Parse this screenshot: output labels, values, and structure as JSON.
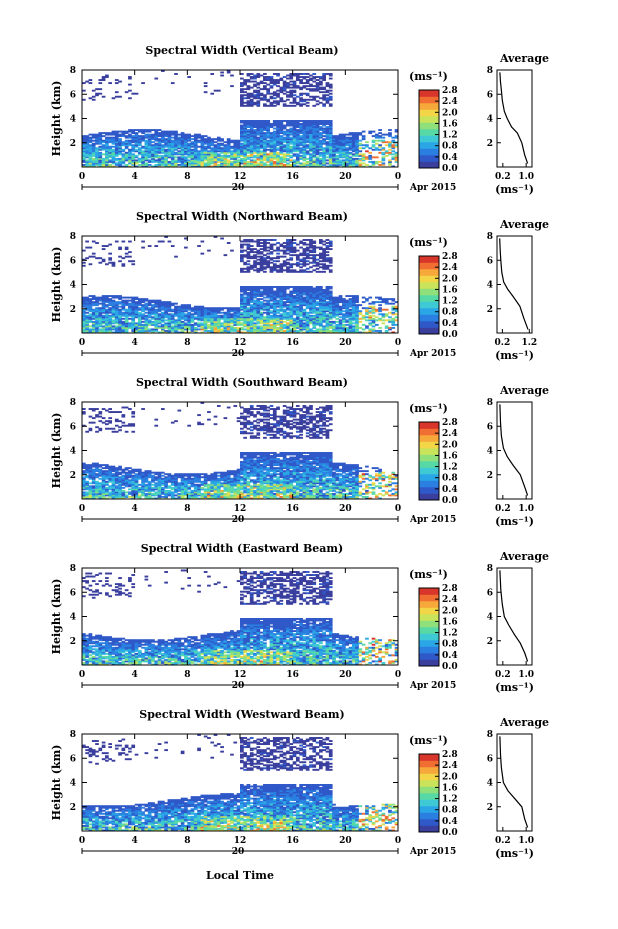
{
  "figure": {
    "xlabel": "Local Time",
    "day_label": "20",
    "month_label": "Apr 2015",
    "unit_label": "(ms⁻¹)",
    "avg_title": "Average"
  },
  "colorscale": {
    "colors": [
      "#3a3f9e",
      "#2f58c8",
      "#2a7fe0",
      "#2aa6e6",
      "#3fc9d4",
      "#57d9a6",
      "#8fe07a",
      "#c9e35a",
      "#f2d648",
      "#f7a83a",
      "#f16e32",
      "#d9362b"
    ],
    "ticks": [
      "2.8",
      "2.4",
      "2.0",
      "1.6",
      "1.2",
      "0.8",
      "0.4",
      "0.0"
    ]
  },
  "chart_data": [
    {
      "type": "heatmap",
      "title": "Spectral Width (Vertical Beam)",
      "xlabel": "Local Time",
      "ylabel": "Height (km)",
      "xlim": [
        0,
        24
      ],
      "ylim": [
        0,
        8
      ],
      "xticks": [
        "0",
        "4",
        "8",
        "12",
        "16",
        "20",
        "0"
      ],
      "yticks": [
        "2",
        "4",
        "6",
        "8"
      ],
      "colorbar": {
        "label": "(ms⁻¹)",
        "range": [
          0.0,
          2.8
        ],
        "ticks": [
          "2.8",
          "2.4",
          "2.0",
          "1.6",
          "1.2",
          "0.8",
          "0.4",
          "0.0"
        ]
      },
      "average_profile": {
        "title": "Average",
        "xlabel": "(ms⁻¹)",
        "xlim": [
          0,
          1.2
        ],
        "xticks": [
          "0.2",
          "1.0"
        ],
        "ylim": [
          0,
          8
        ],
        "yticks": [
          "2",
          "4",
          "6",
          "8"
        ],
        "x": [
          1.05,
          0.95,
          0.85,
          0.7,
          0.5,
          0.35,
          0.25,
          0.18,
          0.15,
          0.12,
          0.1
        ],
        "y": [
          0.3,
          1.0,
          2.0,
          2.8,
          3.3,
          4.0,
          4.6,
          5.5,
          6.3,
          7.0,
          7.8
        ]
      }
    },
    {
      "type": "heatmap",
      "title": "Spectral Width (Northward Beam)",
      "xlabel": "Local Time",
      "ylabel": "Height (km)",
      "xlim": [
        0,
        24
      ],
      "ylim": [
        0,
        8
      ],
      "xticks": [
        "0",
        "4",
        "8",
        "12",
        "16",
        "20",
        "0"
      ],
      "yticks": [
        "2",
        "4",
        "6",
        "8"
      ],
      "colorbar": {
        "label": "(ms⁻¹)",
        "range": [
          0.0,
          2.8
        ],
        "ticks": [
          "2.8",
          "2.4",
          "2.0",
          "1.6",
          "1.2",
          "0.8",
          "0.4",
          "0.0"
        ]
      },
      "average_profile": {
        "title": "Average",
        "xlabel": "(ms⁻¹)",
        "xlim": [
          0,
          1.3
        ],
        "xticks": [
          "0.2",
          "1.2"
        ],
        "ylim": [
          0,
          8
        ],
        "yticks": [
          "2",
          "4",
          "6",
          "8"
        ],
        "x": [
          1.15,
          1.0,
          0.85,
          0.6,
          0.4,
          0.25,
          0.18,
          0.14,
          0.12,
          0.1
        ],
        "y": [
          0.3,
          1.2,
          2.2,
          3.0,
          3.6,
          4.2,
          5.0,
          6.0,
          6.8,
          7.8
        ]
      }
    },
    {
      "type": "heatmap",
      "title": "Spectral Width (Southward Beam)",
      "xlabel": "Local Time",
      "ylabel": "Height (km)",
      "xlim": [
        0,
        24
      ],
      "ylim": [
        0,
        8
      ],
      "xticks": [
        "0",
        "4",
        "8",
        "12",
        "16",
        "20",
        "0"
      ],
      "yticks": [
        "2",
        "4",
        "6",
        "8"
      ],
      "colorbar": {
        "label": "(ms⁻¹)",
        "range": [
          0.0,
          2.8
        ],
        "ticks": [
          "2.8",
          "2.4",
          "2.0",
          "1.6",
          "1.2",
          "0.8",
          "0.4",
          "0.0"
        ]
      },
      "average_profile": {
        "title": "Average",
        "xlabel": "(ms⁻¹)",
        "xlim": [
          0,
          1.2
        ],
        "xticks": [
          "0.2",
          "1.0"
        ],
        "ylim": [
          0,
          8
        ],
        "yticks": [
          "2",
          "4",
          "6",
          "8"
        ],
        "x": [
          1.05,
          0.95,
          0.8,
          0.55,
          0.35,
          0.22,
          0.15,
          0.12,
          0.1
        ],
        "y": [
          0.3,
          1.0,
          2.0,
          2.8,
          3.5,
          4.2,
          5.2,
          6.3,
          7.8
        ]
      }
    },
    {
      "type": "heatmap",
      "title": "Spectral Width (Eastward Beam)",
      "xlabel": "Local Time",
      "ylabel": "Height (km)",
      "xlim": [
        0,
        24
      ],
      "ylim": [
        0,
        8
      ],
      "xticks": [
        "0",
        "4",
        "8",
        "12",
        "16",
        "20",
        "0"
      ],
      "yticks": [
        "2",
        "4",
        "6",
        "8"
      ],
      "colorbar": {
        "label": "(ms⁻¹)",
        "range": [
          0.0,
          2.8
        ],
        "ticks": [
          "2.8",
          "2.4",
          "2.0",
          "1.6",
          "1.2",
          "0.8",
          "0.4",
          "0.0"
        ]
      },
      "average_profile": {
        "title": "Average",
        "xlabel": "(ms⁻¹)",
        "xlim": [
          0,
          1.2
        ],
        "xticks": [
          "0.2",
          "1.0"
        ],
        "ylim": [
          0,
          8
        ],
        "yticks": [
          "2",
          "4",
          "6",
          "8"
        ],
        "x": [
          1.05,
          0.95,
          0.8,
          0.6,
          0.4,
          0.25,
          0.18,
          0.13,
          0.1
        ],
        "y": [
          0.3,
          1.0,
          1.8,
          2.5,
          3.3,
          4.0,
          5.0,
          6.2,
          7.8
        ]
      }
    },
    {
      "type": "heatmap",
      "title": "Spectral Width (Westward Beam)",
      "xlabel": "Local Time",
      "ylabel": "Height (km)",
      "xlim": [
        0,
        24
      ],
      "ylim": [
        0,
        8
      ],
      "xticks": [
        "0",
        "4",
        "8",
        "12",
        "16",
        "20",
        "0"
      ],
      "yticks": [
        "2",
        "4",
        "6",
        "8"
      ],
      "colorbar": {
        "label": "(ms⁻¹)",
        "range": [
          0.0,
          2.8
        ],
        "ticks": [
          "2.8",
          "2.4",
          "2.0",
          "1.6",
          "1.2",
          "0.8",
          "0.4",
          "0.0"
        ]
      },
      "average_profile": {
        "title": "Average",
        "xlabel": "(ms⁻¹)",
        "xlim": [
          0,
          1.2
        ],
        "xticks": [
          "0.2",
          "1.0"
        ],
        "ylim": [
          0,
          8
        ],
        "yticks": [
          "2",
          "4",
          "6",
          "8"
        ],
        "x": [
          1.05,
          0.95,
          0.85,
          0.6,
          0.38,
          0.22,
          0.15,
          0.12,
          0.1
        ],
        "y": [
          0.3,
          1.0,
          2.0,
          2.7,
          3.3,
          4.0,
          5.2,
          6.3,
          7.8
        ]
      }
    }
  ]
}
